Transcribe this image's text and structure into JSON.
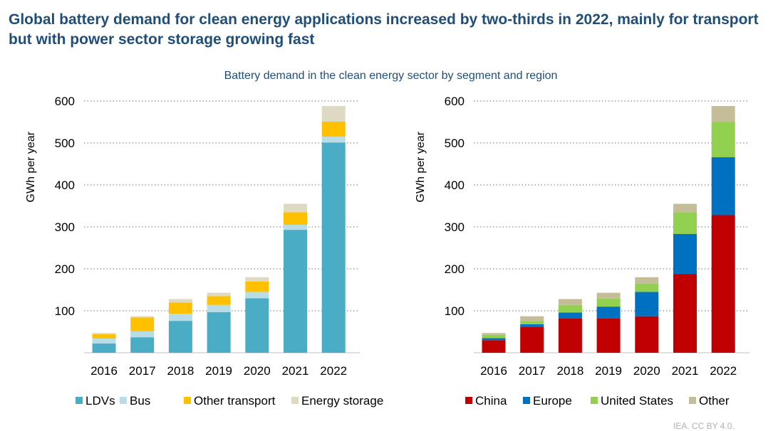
{
  "header": {
    "title": "Global battery demand for clean energy applications increased by two-thirds in 2022, mainly for transport but with power sector storage growing fast",
    "subtitle": "Battery demand in the clean energy sector by segment and region"
  },
  "footer": {
    "credit": "IEA. CC BY 4.0."
  },
  "chart_data": [
    {
      "type": "bar",
      "stacked": true,
      "categories": [
        "2016",
        "2017",
        "2018",
        "2019",
        "2020",
        "2021",
        "2022"
      ],
      "ylabel": "GWh per year",
      "ylim": [
        0,
        600
      ],
      "yticks": [
        100,
        200,
        300,
        400,
        500,
        600
      ],
      "grid": true,
      "legend_position": "bottom",
      "series": [
        {
          "name": "LDVs",
          "color": "#4bacc6",
          "values": [
            22,
            37,
            76,
            97,
            130,
            293,
            501
          ]
        },
        {
          "name": "Bus",
          "color": "#b7dee8",
          "values": [
            12,
            14,
            17,
            17,
            15,
            12,
            14
          ]
        },
        {
          "name": "Other transport",
          "color": "#ffc000",
          "values": [
            10,
            33,
            27,
            21,
            25,
            30,
            36
          ]
        },
        {
          "name": "Energy storage",
          "color": "#ddd9c3",
          "values": [
            3,
            3,
            8,
            8,
            10,
            20,
            37
          ]
        }
      ]
    },
    {
      "type": "bar",
      "stacked": true,
      "categories": [
        "2016",
        "2017",
        "2018",
        "2019",
        "2020",
        "2021",
        "2022"
      ],
      "ylabel": "GWh per year",
      "ylim": [
        0,
        600
      ],
      "yticks": [
        100,
        200,
        300,
        400,
        500,
        600
      ],
      "grid": true,
      "legend_position": "bottom",
      "series": [
        {
          "name": "China",
          "color": "#c00000",
          "values": [
            30,
            61,
            82,
            82,
            87,
            188,
            328
          ]
        },
        {
          "name": "Europe",
          "color": "#0070c0",
          "values": [
            5,
            7,
            14,
            28,
            58,
            95,
            138
          ]
        },
        {
          "name": "United States",
          "color": "#92d050",
          "values": [
            8,
            8,
            18,
            19,
            20,
            52,
            84
          ]
        },
        {
          "name": "Other",
          "color": "#c4bd97",
          "values": [
            4,
            11,
            14,
            14,
            15,
            20,
            38
          ]
        }
      ]
    }
  ]
}
